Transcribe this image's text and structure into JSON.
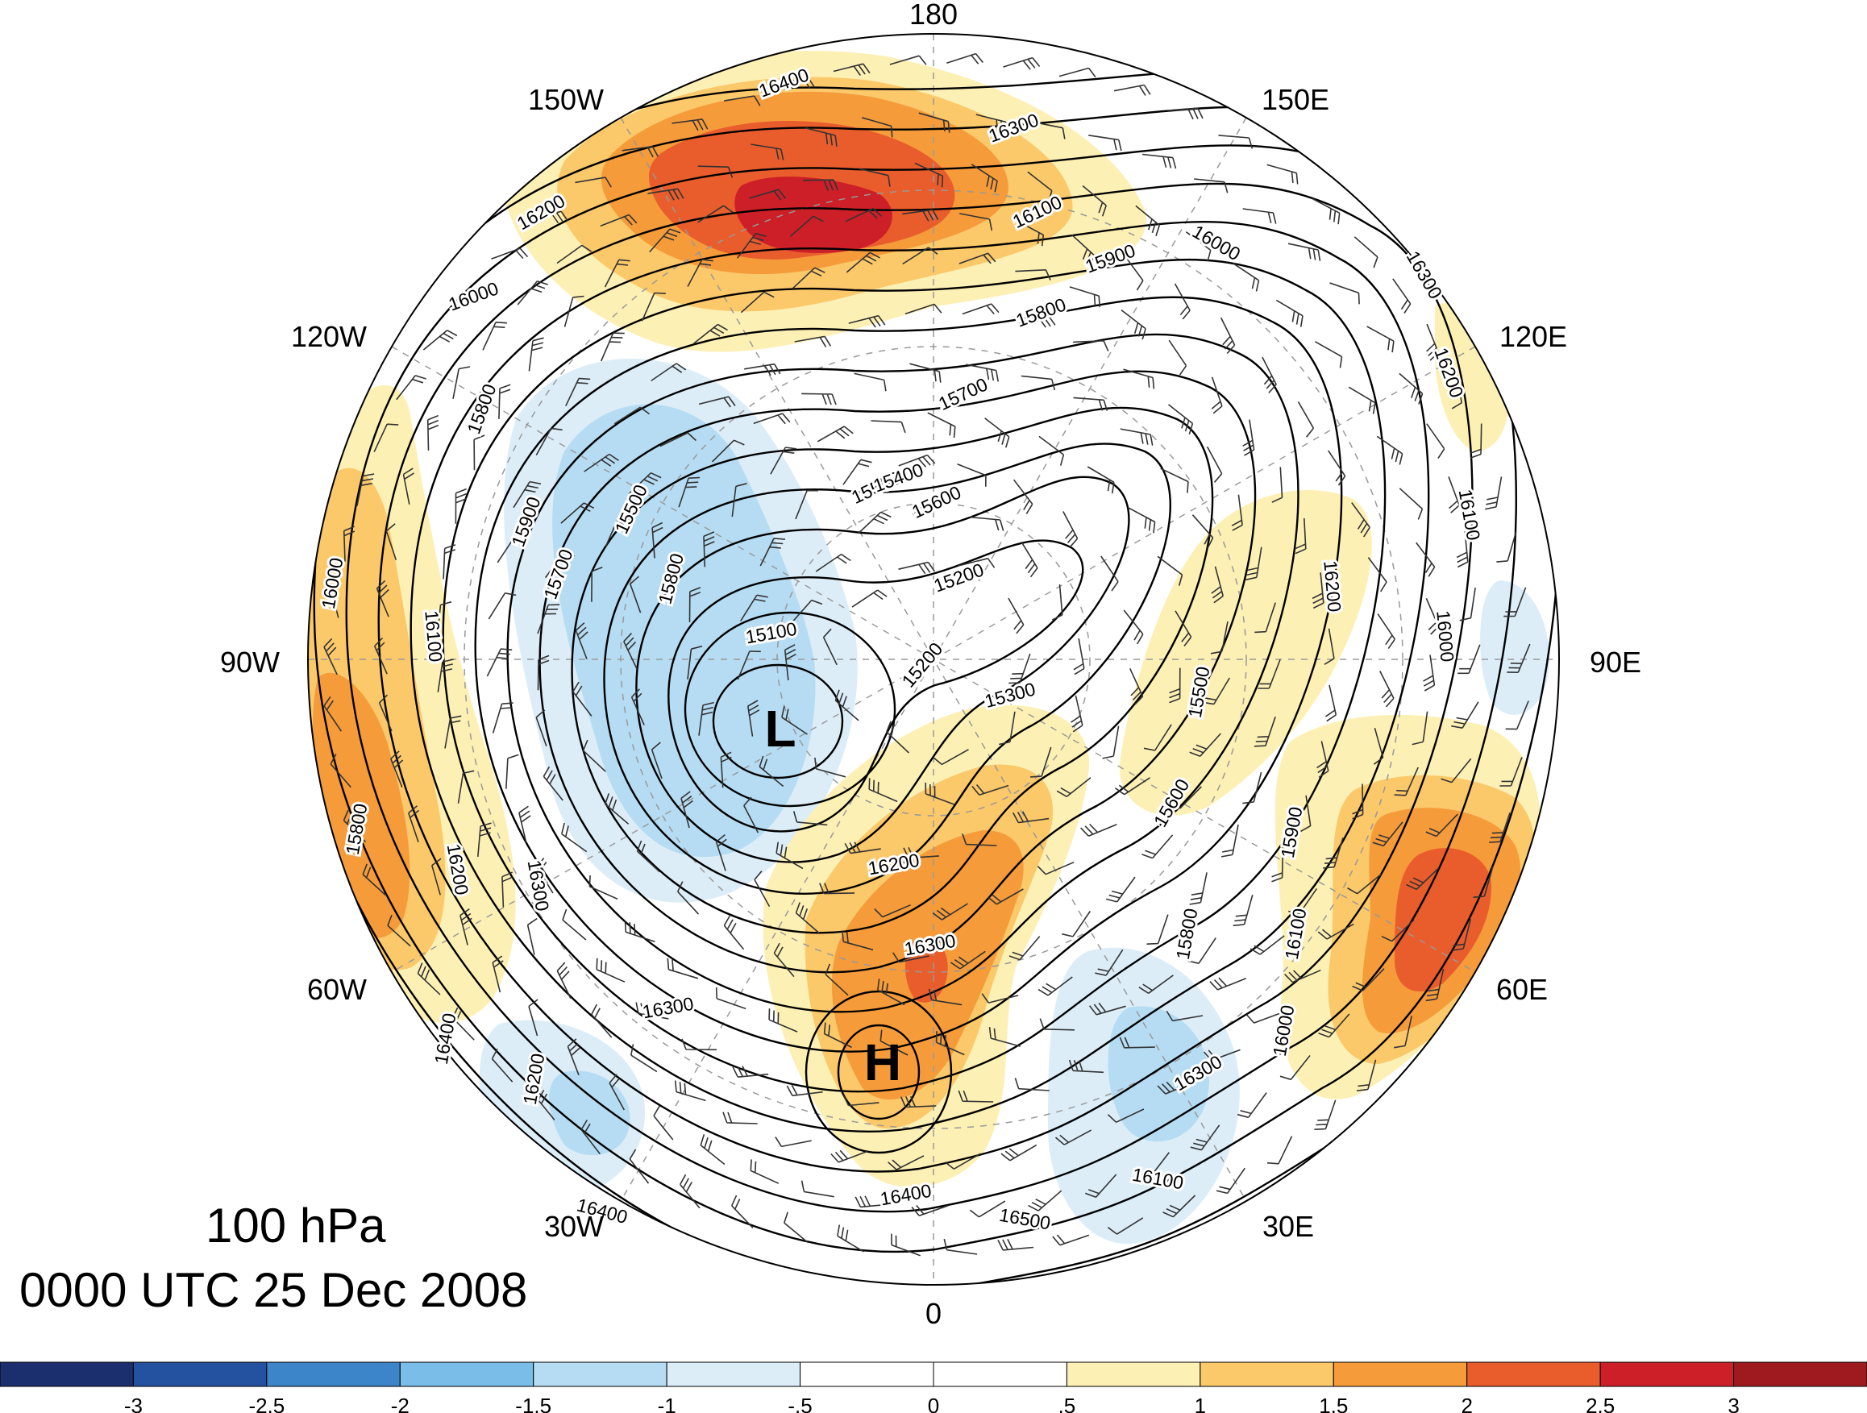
{
  "map": {
    "longitude_labels": [
      "180",
      "150E",
      "120E",
      "90E",
      "60E",
      "30E",
      "0",
      "30W",
      "60W",
      "90W",
      "120W",
      "150W"
    ],
    "center_labels": {
      "low": "L",
      "high": "H"
    },
    "contour_labels": [
      "16400",
      "16300",
      "16100",
      "15900",
      "16000",
      "16300",
      "16200",
      "16100",
      "16000",
      "15800",
      "15700",
      "15500",
      "15600",
      "15400",
      "15200",
      "15100",
      "15200",
      "15300",
      "15500",
      "15600",
      "15800",
      "15900",
      "16100",
      "16200",
      "16000",
      "16300",
      "16200",
      "16300",
      "16400",
      "16500",
      "16100",
      "16300",
      "16400",
      "16200",
      "16000",
      "15800",
      "15900",
      "15700",
      "15500",
      "15800",
      "16000",
      "16100",
      "15800",
      "16200",
      "16300",
      "16400",
      "16200"
    ],
    "shading_colors": {
      "neg3": "#1b2f6e",
      "neg2_5": "#2451a0",
      "neg2": "#3d85c9",
      "neg1_5": "#79bde8",
      "neg1": "#b5dcf2",
      "neg0_5": "#dcedf8",
      "zero": "#ffffff",
      "pos0_5": "#fdf0b4",
      "pos1": "#fbc86a",
      "pos1_5": "#f59b3a",
      "pos2": "#e95d2d",
      "pos2_5": "#cc1f27",
      "pos3": "#9e1a1f"
    }
  },
  "info": {
    "level": "100 hPa",
    "time": "0000 UTC 25 Dec 2008"
  },
  "colorbar": {
    "colors": [
      "#1b2f6e",
      "#2451a0",
      "#3d85c9",
      "#79bde8",
      "#b5dcf2",
      "#dcedf8",
      "#ffffff",
      "#ffffff",
      "#fdf0b4",
      "#fbc86a",
      "#f59b3a",
      "#e95d2d",
      "#cc1f27",
      "#9e1a1f"
    ],
    "labels": [
      "-3",
      "-2.5",
      "-2",
      "-1.5",
      "-1",
      "-.5",
      "0",
      ".5",
      "1",
      "1.5",
      "2",
      "2.5",
      "3"
    ]
  }
}
